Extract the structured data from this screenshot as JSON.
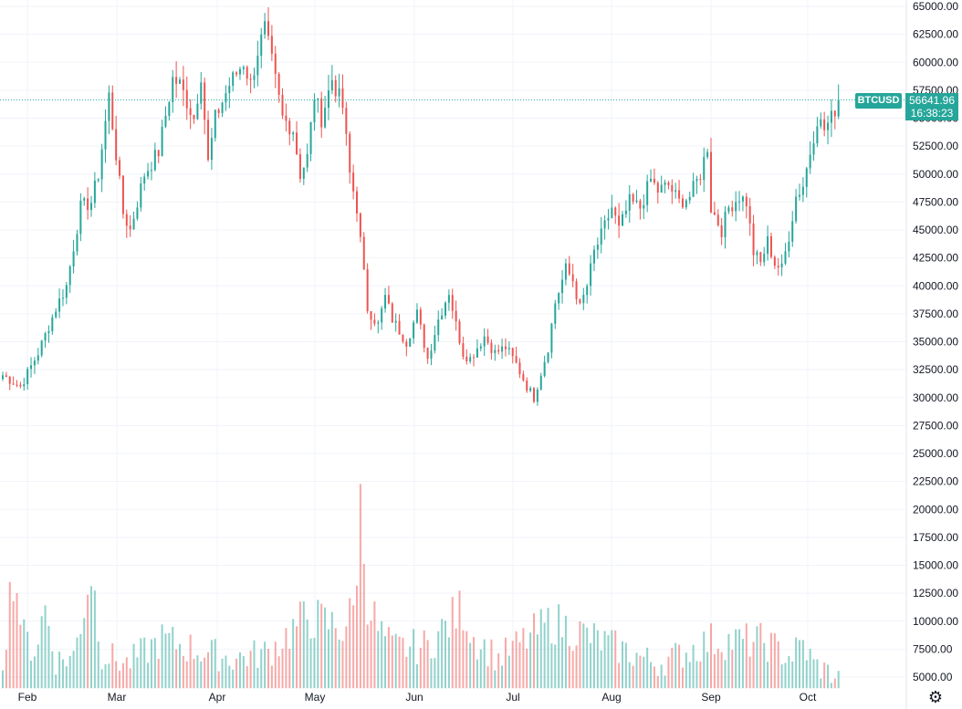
{
  "chart_data": {
    "type": "candlestick",
    "symbol": "BTCUSD",
    "last_price": "56641.96",
    "countdown": "16:38:23",
    "y_ticks": [
      "65000.00",
      "62500.00",
      "60000.00",
      "57500.00",
      "55000.00",
      "52500.00",
      "50000.00",
      "47500.00",
      "45000.00",
      "42500.00",
      "40000.00",
      "37500.00",
      "35000.00",
      "32500.00",
      "30000.00",
      "27500.00",
      "25000.00",
      "22500.00",
      "20000.00",
      "17500.00",
      "15000.00",
      "12500.00",
      "10000.00",
      "7500.00",
      "5000.00"
    ],
    "ylim": [
      4000,
      65600
    ],
    "x_ticks": [
      "Feb",
      "Mar",
      "Apr",
      "May",
      "Jun",
      "Jul",
      "Aug",
      "Sep",
      "Oct"
    ],
    "candle_close_anchors": [
      [
        0,
        32000
      ],
      [
        5,
        31000
      ],
      [
        10,
        34000
      ],
      [
        15,
        38000
      ],
      [
        18,
        40000
      ],
      [
        22,
        47000
      ],
      [
        25,
        47500
      ],
      [
        27,
        50000
      ],
      [
        30,
        57000
      ],
      [
        34,
        46500
      ],
      [
        36,
        45000
      ],
      [
        40,
        50000
      ],
      [
        44,
        52000
      ],
      [
        48,
        58500
      ],
      [
        50,
        58000
      ],
      [
        54,
        55000
      ],
      [
        56,
        59000
      ],
      [
        58,
        51000
      ],
      [
        60,
        55000
      ],
      [
        64,
        58000
      ],
      [
        66,
        59000
      ],
      [
        68,
        60000
      ],
      [
        70,
        58000
      ],
      [
        72,
        61000
      ],
      [
        74,
        63000
      ],
      [
        76,
        60000
      ],
      [
        79,
        55000
      ],
      [
        82,
        54000
      ],
      [
        84,
        50000
      ],
      [
        86,
        51500
      ],
      [
        88,
        57000
      ],
      [
        90,
        55000
      ],
      [
        93,
        58500
      ],
      [
        96,
        56000
      ],
      [
        98,
        50000
      ],
      [
        100,
        47000
      ],
      [
        103,
        38000
      ],
      [
        106,
        36500
      ],
      [
        108,
        39000
      ],
      [
        110,
        37000
      ],
      [
        114,
        35000
      ],
      [
        117,
        37500
      ],
      [
        120,
        33500
      ],
      [
        123,
        37000
      ],
      [
        126,
        39500
      ],
      [
        128,
        36500
      ],
      [
        130,
        34000
      ],
      [
        132,
        33500
      ],
      [
        134,
        34500
      ],
      [
        136,
        35500
      ],
      [
        139,
        34000
      ],
      [
        142,
        34500
      ],
      [
        145,
        33000
      ],
      [
        148,
        31000
      ],
      [
        150,
        30000
      ],
      [
        154,
        34500
      ],
      [
        156,
        38500
      ],
      [
        159,
        41500
      ],
      [
        161,
        40500
      ],
      [
        163,
        38000
      ],
      [
        165,
        40000
      ],
      [
        167,
        43000
      ],
      [
        169,
        44500
      ],
      [
        172,
        47000
      ],
      [
        174,
        45000
      ],
      [
        177,
        47500
      ],
      [
        180,
        47000
      ],
      [
        183,
        49500
      ],
      [
        185,
        48500
      ],
      [
        188,
        49000
      ],
      [
        191,
        47500
      ],
      [
        194,
        48000
      ],
      [
        197,
        50000
      ],
      [
        199,
        52500
      ],
      [
        200,
        47000
      ],
      [
        203,
        45000
      ],
      [
        205,
        47000
      ],
      [
        208,
        48000
      ],
      [
        210,
        47500
      ],
      [
        212,
        43000
      ],
      [
        214,
        42000
      ],
      [
        216,
        44000
      ],
      [
        218,
        42000
      ],
      [
        220,
        41500
      ],
      [
        222,
        44500
      ],
      [
        224,
        48000
      ],
      [
        226,
        49000
      ],
      [
        228,
        52000
      ],
      [
        230,
        55000
      ],
      [
        232,
        54000
      ],
      [
        234,
        55000
      ],
      [
        236,
        56642
      ]
    ],
    "volume_anchors": [
      [
        0,
        7000
      ],
      [
        3,
        15500
      ],
      [
        6,
        9000
      ],
      [
        9,
        7800
      ],
      [
        12,
        11800
      ],
      [
        15,
        6800
      ],
      [
        20,
        7200
      ],
      [
        25,
        15400
      ],
      [
        28,
        7500
      ],
      [
        35,
        6500
      ],
      [
        45,
        8800
      ],
      [
        55,
        7800
      ],
      [
        65,
        7000
      ],
      [
        75,
        7600
      ],
      [
        86,
        11000
      ],
      [
        96,
        9800
      ],
      [
        99,
        11500
      ],
      [
        101,
        21200
      ],
      [
        103,
        12800
      ],
      [
        106,
        9700
      ],
      [
        110,
        8000
      ],
      [
        120,
        8200
      ],
      [
        130,
        11800
      ],
      [
        133,
        9000
      ],
      [
        140,
        7000
      ],
      [
        155,
        10500
      ],
      [
        170,
        8500
      ],
      [
        185,
        6500
      ],
      [
        200,
        8700
      ],
      [
        215,
        8600
      ],
      [
        222,
        7200
      ],
      [
        226,
        8300
      ],
      [
        229,
        6500
      ],
      [
        236,
        5200
      ]
    ]
  }
}
